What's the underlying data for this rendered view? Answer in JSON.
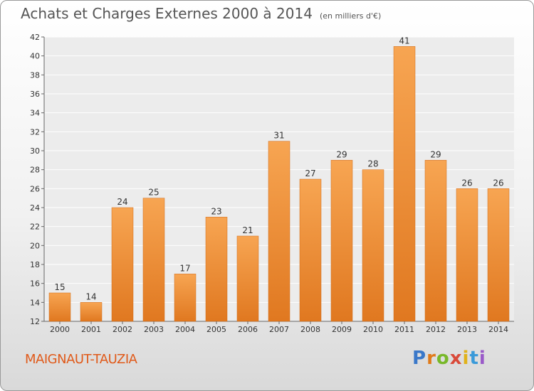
{
  "title": "Achats et Charges Externes 2000 à 2014",
  "unit": "(en milliers d'€)",
  "location": "MAIGNAUT-TAUZIA",
  "logo": {
    "p": "P",
    "r": "r",
    "o": "o",
    "x": "x",
    "i1": "i",
    "t": "t",
    "i2": "i"
  },
  "colors": {
    "bar_light": "#f7a552",
    "bar_dark": "#e07820",
    "location": "#e05a1a"
  },
  "chart_data": {
    "type": "bar",
    "title": "Achats et Charges Externes 2000 à 2014",
    "categories": [
      "2000",
      "2001",
      "2002",
      "2003",
      "2004",
      "2005",
      "2006",
      "2007",
      "2008",
      "2009",
      "2010",
      "2011",
      "2012",
      "2013",
      "2014"
    ],
    "values": [
      15,
      14,
      24,
      25,
      17,
      23,
      21,
      31,
      27,
      29,
      28,
      41,
      29,
      26,
      26
    ],
    "ylim": [
      12,
      42
    ],
    "yticks": [
      12,
      14,
      16,
      18,
      20,
      22,
      24,
      26,
      28,
      30,
      32,
      34,
      36,
      38,
      40,
      42
    ],
    "grid": true,
    "legend": "none"
  }
}
